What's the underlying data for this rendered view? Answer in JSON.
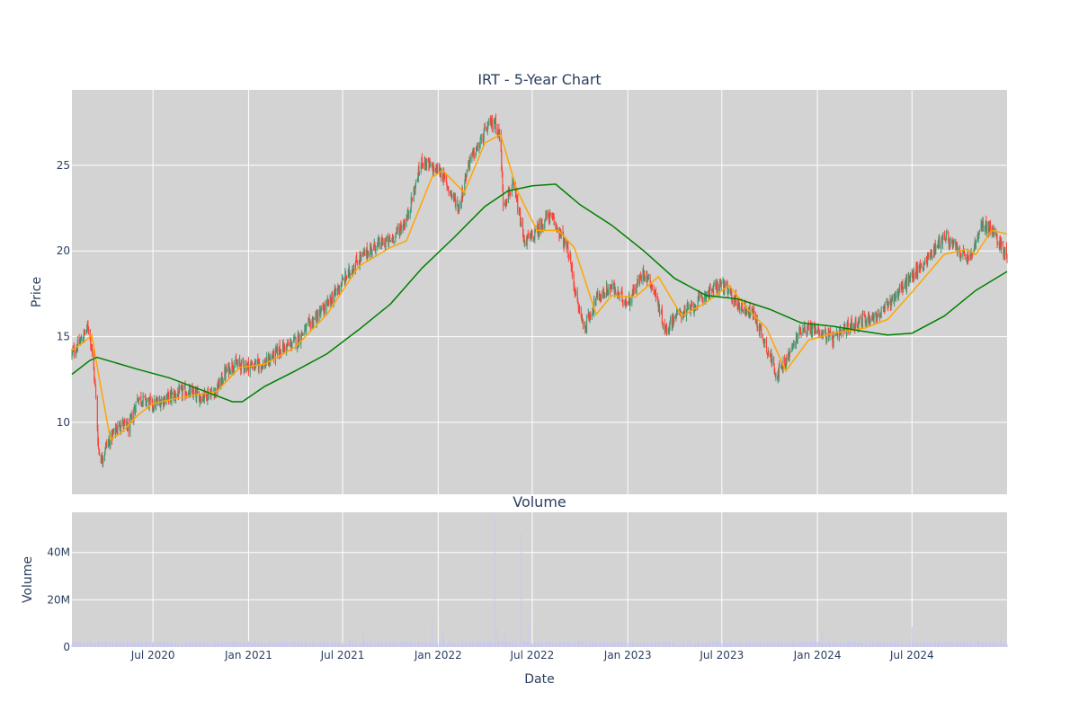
{
  "chart_data": [
    {
      "type": "candlestick",
      "title": "IRT - 5-Year Chart",
      "ylabel": "Price",
      "ylim": [
        5.8,
        29.4
      ],
      "x_range": [
        "2020-01-27",
        "2024-12-31"
      ],
      "x_tick_labels": [
        "Jul 2020",
        "Jan 2021",
        "Jul 2021",
        "Jan 2022",
        "Jul 2022",
        "Jan 2023",
        "Jul 2023",
        "Jan 2024",
        "Jul 2024"
      ],
      "y_ticks": [
        10,
        15,
        20,
        25
      ],
      "grid": true,
      "increasing_color": "#3d9970",
      "decreasing_color": "#ff4136",
      "close_anchors": [
        [
          "2020-01-27",
          14.0
        ],
        [
          "2020-02-10",
          14.6
        ],
        [
          "2020-02-21",
          15.2
        ],
        [
          "2020-02-28",
          15.6
        ],
        [
          "2020-03-05",
          14.3
        ],
        [
          "2020-03-12",
          12.0
        ],
        [
          "2020-03-18",
          8.5
        ],
        [
          "2020-03-24",
          7.8
        ],
        [
          "2020-04-01",
          8.6
        ],
        [
          "2020-04-15",
          9.3
        ],
        [
          "2020-05-01",
          10.0
        ],
        [
          "2020-05-15",
          9.6
        ],
        [
          "2020-06-01",
          11.4
        ],
        [
          "2020-06-15",
          11.3
        ],
        [
          "2020-07-01",
          11.0
        ],
        [
          "2020-08-01",
          11.5
        ],
        [
          "2020-09-01",
          11.8
        ],
        [
          "2020-10-01",
          11.5
        ],
        [
          "2020-11-01",
          11.9
        ],
        [
          "2020-11-15",
          12.8
        ],
        [
          "2020-12-01",
          13.4
        ],
        [
          "2021-01-01",
          13.3
        ],
        [
          "2021-02-01",
          13.4
        ],
        [
          "2021-03-01",
          14.2
        ],
        [
          "2021-04-01",
          14.7
        ],
        [
          "2021-05-01",
          15.8
        ],
        [
          "2021-06-01",
          16.8
        ],
        [
          "2021-07-01",
          18.2
        ],
        [
          "2021-08-01",
          19.5
        ],
        [
          "2021-09-01",
          20.3
        ],
        [
          "2021-10-01",
          20.6
        ],
        [
          "2021-11-01",
          21.8
        ],
        [
          "2021-12-01",
          25.3
        ],
        [
          "2021-12-20",
          24.8
        ],
        [
          "2022-01-05",
          24.7
        ],
        [
          "2022-01-25",
          23.4
        ],
        [
          "2022-02-10",
          22.5
        ],
        [
          "2022-03-01",
          25.2
        ],
        [
          "2022-03-20",
          26.1
        ],
        [
          "2022-04-05",
          27.2
        ],
        [
          "2022-04-20",
          27.6
        ],
        [
          "2022-05-01",
          26.5
        ],
        [
          "2022-05-06",
          22.8
        ],
        [
          "2022-05-25",
          23.8
        ],
        [
          "2022-06-01",
          22.9
        ],
        [
          "2022-06-15",
          20.6
        ],
        [
          "2022-07-01",
          20.8
        ],
        [
          "2022-08-01",
          22.1
        ],
        [
          "2022-08-20",
          21.3
        ],
        [
          "2022-09-10",
          19.8
        ],
        [
          "2022-09-25",
          17.0
        ],
        [
          "2022-10-10",
          15.5
        ],
        [
          "2022-11-01",
          17.2
        ],
        [
          "2022-12-01",
          17.9
        ],
        [
          "2022-12-15",
          17.4
        ],
        [
          "2023-01-01",
          17.0
        ],
        [
          "2023-02-01",
          18.8
        ],
        [
          "2023-02-20",
          17.8
        ],
        [
          "2023-03-15",
          15.3
        ],
        [
          "2023-04-01",
          16.2
        ],
        [
          "2023-05-01",
          16.6
        ],
        [
          "2023-06-01",
          17.5
        ],
        [
          "2023-07-01",
          18.1
        ],
        [
          "2023-08-01",
          16.9
        ],
        [
          "2023-09-01",
          16.3
        ],
        [
          "2023-09-20",
          14.8
        ],
        [
          "2023-10-15",
          12.8
        ],
        [
          "2023-11-01",
          13.5
        ],
        [
          "2023-12-01",
          15.5
        ],
        [
          "2024-01-01",
          15.4
        ],
        [
          "2024-02-01",
          14.8
        ],
        [
          "2024-03-01",
          15.6
        ],
        [
          "2024-04-01",
          16.0
        ],
        [
          "2024-05-01",
          16.3
        ],
        [
          "2024-06-01",
          17.5
        ],
        [
          "2024-07-01",
          18.5
        ],
        [
          "2024-08-01",
          19.6
        ],
        [
          "2024-09-01",
          20.9
        ],
        [
          "2024-10-01",
          19.9
        ],
        [
          "2024-10-20",
          19.5
        ],
        [
          "2024-11-15",
          21.6
        ],
        [
          "2024-12-01",
          21.2
        ],
        [
          "2024-12-31",
          19.8
        ]
      ],
      "overlays": [
        {
          "color": "#ffa500",
          "points": [
            [
              "2020-01-27",
              14.2
            ],
            [
              "2020-02-20",
              14.7
            ],
            [
              "2020-03-05",
              15.1
            ],
            [
              "2020-03-20",
              12.5
            ],
            [
              "2020-04-10",
              9.0
            ],
            [
              "2020-05-01",
              9.4
            ],
            [
              "2020-06-01",
              10.4
            ],
            [
              "2020-07-01",
              11.1
            ],
            [
              "2020-09-01",
              11.5
            ],
            [
              "2020-11-01",
              11.8
            ],
            [
              "2020-12-15",
              13.2
            ],
            [
              "2021-02-01",
              13.4
            ],
            [
              "2021-04-01",
              14.4
            ],
            [
              "2021-06-01",
              16.3
            ],
            [
              "2021-08-01",
              19.1
            ],
            [
              "2021-10-01",
              20.2
            ],
            [
              "2021-11-01",
              20.6
            ],
            [
              "2021-12-20",
              24.3
            ],
            [
              "2022-01-10",
              24.7
            ],
            [
              "2022-02-20",
              23.4
            ],
            [
              "2022-04-01",
              26.3
            ],
            [
              "2022-05-01",
              26.8
            ],
            [
              "2022-06-01",
              23.6
            ],
            [
              "2022-07-10",
              21.2
            ],
            [
              "2022-08-20",
              21.2
            ],
            [
              "2022-09-20",
              20.2
            ],
            [
              "2022-11-01",
              16.3
            ],
            [
              "2022-12-01",
              17.4
            ],
            [
              "2023-01-15",
              17.3
            ],
            [
              "2023-03-01",
              18.5
            ],
            [
              "2023-04-15",
              16.2
            ],
            [
              "2023-06-01",
              17.0
            ],
            [
              "2023-07-15",
              18.0
            ],
            [
              "2023-08-20",
              16.6
            ],
            [
              "2023-09-25",
              15.5
            ],
            [
              "2023-11-01",
              13.0
            ],
            [
              "2023-12-15",
              14.8
            ],
            [
              "2024-02-01",
              15.2
            ],
            [
              "2024-04-01",
              15.5
            ],
            [
              "2024-05-15",
              16.0
            ],
            [
              "2024-07-01",
              17.6
            ],
            [
              "2024-09-01",
              19.8
            ],
            [
              "2024-10-15",
              20.1
            ],
            [
              "2024-11-01",
              19.8
            ],
            [
              "2024-12-01",
              21.2
            ],
            [
              "2024-12-31",
              21.0
            ]
          ]
        },
        {
          "color": "#008000",
          "points": [
            [
              "2020-01-27",
              12.8
            ],
            [
              "2020-03-01",
              13.6
            ],
            [
              "2020-03-15",
              13.8
            ],
            [
              "2020-06-01",
              13.1
            ],
            [
              "2020-08-01",
              12.6
            ],
            [
              "2020-10-01",
              11.9
            ],
            [
              "2020-12-01",
              11.2
            ],
            [
              "2020-12-20",
              11.2
            ],
            [
              "2021-02-01",
              12.1
            ],
            [
              "2021-04-01",
              13.0
            ],
            [
              "2021-06-01",
              14.0
            ],
            [
              "2021-08-01",
              15.4
            ],
            [
              "2021-10-01",
              16.9
            ],
            [
              "2021-12-01",
              19.0
            ],
            [
              "2022-02-01",
              20.8
            ],
            [
              "2022-04-01",
              22.6
            ],
            [
              "2022-05-15",
              23.5
            ],
            [
              "2022-07-01",
              23.8
            ],
            [
              "2022-08-15",
              23.9
            ],
            [
              "2022-10-01",
              22.7
            ],
            [
              "2022-12-01",
              21.5
            ],
            [
              "2023-02-01",
              20.0
            ],
            [
              "2023-04-01",
              18.4
            ],
            [
              "2023-06-01",
              17.4
            ],
            [
              "2023-08-01",
              17.2
            ],
            [
              "2023-10-01",
              16.6
            ],
            [
              "2023-12-01",
              15.8
            ],
            [
              "2024-02-01",
              15.6
            ],
            [
              "2024-04-01",
              15.3
            ],
            [
              "2024-05-15",
              15.1
            ],
            [
              "2024-07-01",
              15.2
            ],
            [
              "2024-09-01",
              16.2
            ],
            [
              "2024-11-01",
              17.7
            ],
            [
              "2024-12-31",
              18.8
            ]
          ]
        }
      ]
    },
    {
      "type": "bar",
      "title": "Volume",
      "xlabel": "Date",
      "ylabel": "Volume",
      "ylim": [
        0,
        57000000
      ],
      "y_tick_labels": [
        "0",
        "20M",
        "40M"
      ],
      "y_ticks": [
        0,
        20000000,
        40000000
      ],
      "color": "#c8c8f0",
      "baseline": 1800000,
      "spikes": [
        [
          "2021-08-10",
          7000000
        ],
        [
          "2021-12-20",
          12000000
        ],
        [
          "2022-01-10",
          5500000
        ],
        [
          "2022-03-05",
          7500000
        ],
        [
          "2022-04-20",
          55000000
        ],
        [
          "2022-04-25",
          8000000
        ],
        [
          "2022-05-10",
          6500000
        ],
        [
          "2022-06-10",
          48000000
        ],
        [
          "2022-06-24",
          12000000
        ],
        [
          "2022-07-10",
          5000000
        ],
        [
          "2022-10-20",
          4500000
        ],
        [
          "2023-01-15",
          5000000
        ],
        [
          "2023-10-15",
          5000000
        ],
        [
          "2024-01-10",
          5500000
        ],
        [
          "2024-03-01",
          4000000
        ],
        [
          "2024-07-01",
          8500000
        ],
        [
          "2024-09-15",
          5500000
        ],
        [
          "2024-10-20",
          5500000
        ],
        [
          "2024-12-20",
          6500000
        ]
      ]
    }
  ]
}
